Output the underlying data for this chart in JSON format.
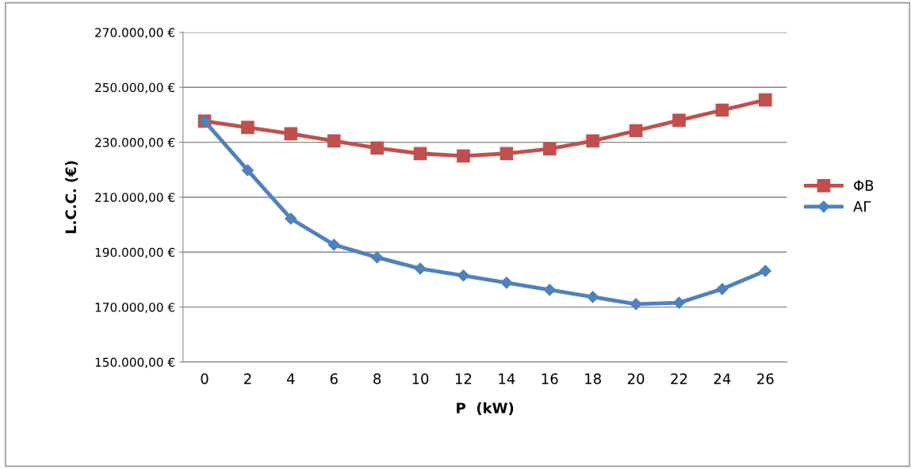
{
  "chart_data": {
    "type": "line",
    "xlabel": "P  (kW)",
    "ylabel": "L.C.C. (€)",
    "categories": [
      "0",
      "2",
      "4",
      "6",
      "8",
      "10",
      "12",
      "14",
      "16",
      "18",
      "20",
      "22",
      "24",
      "26"
    ],
    "series": [
      {
        "name": "ΦΒ",
        "color": "#c0504d",
        "marker": "square",
        "values": [
          237700,
          235400,
          233100,
          230500,
          227900,
          225900,
          225000,
          225900,
          227600,
          230500,
          234200,
          238000,
          241700,
          245400
        ]
      },
      {
        "name": "ΑΓ",
        "color": "#4f81bd",
        "marker": "diamond",
        "values": [
          237700,
          219800,
          202200,
          192700,
          188100,
          184000,
          181500,
          178900,
          176300,
          173700,
          171100,
          171600,
          176600,
          183200
        ]
      }
    ],
    "ylim": [
      150000,
      270000
    ],
    "yticks": [
      {
        "value": 150000,
        "label": "150.000,00 €"
      },
      {
        "value": 170000,
        "label": "170.000,00 €"
      },
      {
        "value": 190000,
        "label": "190.000,00 €"
      },
      {
        "value": 210000,
        "label": "210.000,00 €"
      },
      {
        "value": 230000,
        "label": "230.000,00 €"
      },
      {
        "value": 250000,
        "label": "250.000,00 €"
      },
      {
        "value": 270000,
        "label": "270.000,00 €"
      }
    ],
    "grid": "y",
    "legend": "right",
    "line_style": "solid"
  }
}
